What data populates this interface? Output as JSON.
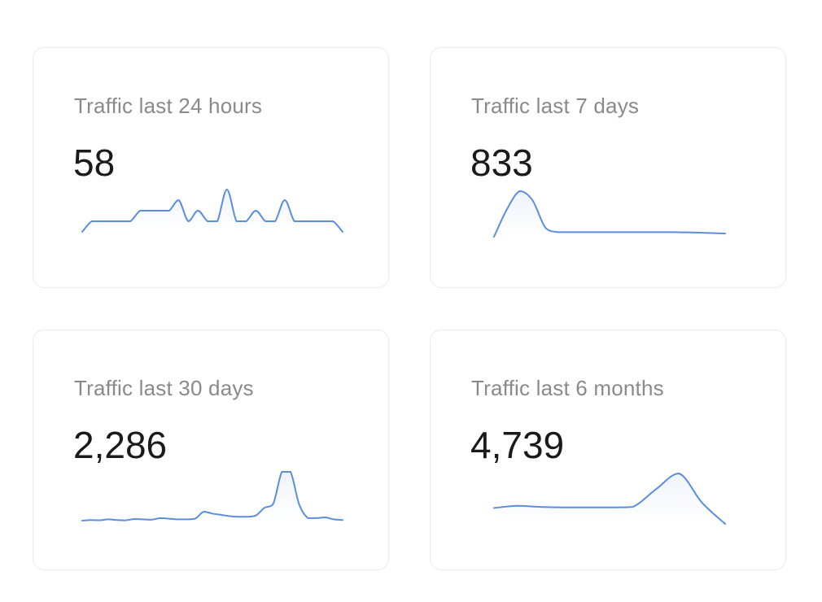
{
  "accent_color": "#5b8fdd",
  "cards": [
    {
      "label": "Traffic last 24 hours",
      "value": "58",
      "sparkline": [
        0,
        1,
        1,
        1,
        1,
        1,
        2,
        2,
        2,
        2,
        3,
        1,
        2,
        1,
        1,
        4,
        1,
        1,
        2,
        1,
        1,
        3,
        1,
        1,
        1,
        1,
        1,
        0
      ]
    },
    {
      "label": "Traffic last 7 days",
      "value": "833",
      "sparkline": [
        0,
        6,
        10,
        8,
        2,
        1,
        1,
        1,
        1,
        1,
        1,
        1,
        1,
        1,
        1,
        0.95,
        0.9,
        0.8,
        0.7
      ]
    },
    {
      "label": "Traffic last 30 days",
      "value": "2,286",
      "sparkline": [
        1,
        1.1,
        1.05,
        1.2,
        1.1,
        1.05,
        1.25,
        1.2,
        1.15,
        1.4,
        1.3,
        1.2,
        1.2,
        1.3,
        2.4,
        2.1,
        1.9,
        1.7,
        1.6,
        1.6,
        1.8,
        3,
        3.6,
        8.6,
        8.6,
        3.5,
        1.4,
        1.4,
        1.5,
        1.2,
        1.1
      ]
    },
    {
      "label": "Traffic last 6 months",
      "value": "4,739",
      "sparkline": [
        3,
        3.4,
        3.2,
        3.1,
        3.1,
        3.1,
        3.2,
        6.5,
        9.5,
        4,
        0
      ]
    }
  ]
}
